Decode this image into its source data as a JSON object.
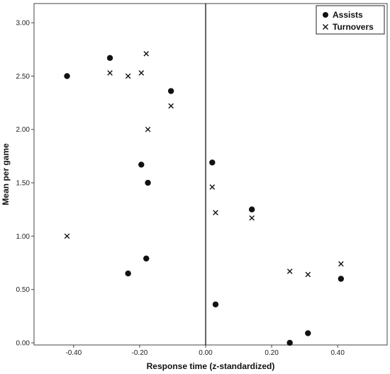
{
  "chart_data": {
    "type": "scatter",
    "xlabel": "Response time (z-standardized)",
    "ylabel": "Mean per game",
    "xlim": [
      -0.52,
      0.55
    ],
    "ylim": [
      -0.02,
      3.18
    ],
    "x_ticks": [
      -0.4,
      -0.2,
      0.0,
      0.2,
      0.4
    ],
    "x_tick_labels": [
      "-0.40",
      "-0.20",
      "0.00",
      "0.20",
      "0.40"
    ],
    "y_ticks": [
      0,
      0.5,
      1.0,
      1.5,
      2.0,
      2.5,
      3.0
    ],
    "y_tick_labels": [
      "0.00",
      "0.50",
      "1.00",
      "1.50",
      "2.00",
      "2.50",
      "3.00"
    ],
    "reference_line_x": 0.0,
    "grid": false,
    "legend_position": "top-right",
    "series": [
      {
        "name": "Assists",
        "marker": "filled-circle",
        "points": [
          {
            "x": -0.42,
            "y": 2.5
          },
          {
            "x": -0.29,
            "y": 2.67
          },
          {
            "x": -0.105,
            "y": 2.36
          },
          {
            "x": -0.195,
            "y": 1.67
          },
          {
            "x": -0.175,
            "y": 1.5
          },
          {
            "x": -0.18,
            "y": 0.79
          },
          {
            "x": -0.235,
            "y": 0.65
          },
          {
            "x": 0.02,
            "y": 1.69
          },
          {
            "x": 0.03,
            "y": 0.36
          },
          {
            "x": 0.14,
            "y": 1.25
          },
          {
            "x": 0.255,
            "y": 0.0
          },
          {
            "x": 0.31,
            "y": 0.09
          },
          {
            "x": 0.41,
            "y": 0.6
          }
        ]
      },
      {
        "name": "Turnovers",
        "marker": "x",
        "points": [
          {
            "x": -0.29,
            "y": 2.53
          },
          {
            "x": -0.235,
            "y": 2.5
          },
          {
            "x": -0.195,
            "y": 2.53
          },
          {
            "x": -0.18,
            "y": 2.71
          },
          {
            "x": -0.105,
            "y": 2.22
          },
          {
            "x": -0.175,
            "y": 2.0
          },
          {
            "x": -0.42,
            "y": 1.0
          },
          {
            "x": 0.02,
            "y": 1.46
          },
          {
            "x": 0.03,
            "y": 1.22
          },
          {
            "x": 0.14,
            "y": 1.17
          },
          {
            "x": 0.255,
            "y": 0.67
          },
          {
            "x": 0.31,
            "y": 0.64
          },
          {
            "x": 0.41,
            "y": 0.74
          }
        ]
      }
    ]
  }
}
